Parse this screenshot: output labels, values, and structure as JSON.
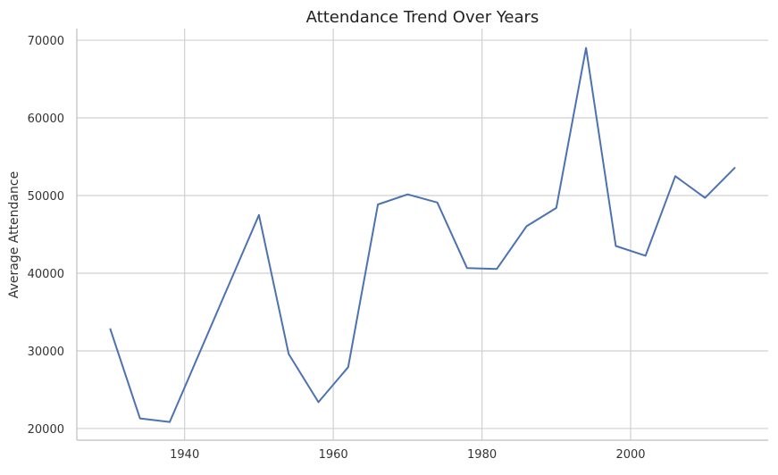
{
  "chart_data": {
    "type": "line",
    "title": "Attendance Trend Over Years",
    "xlabel": "",
    "ylabel": "Average Attendance",
    "xlim": [
      1925.5,
      2018.5
    ],
    "ylim": [
      18500,
      71500
    ],
    "xticks": [
      1940,
      1960,
      1980,
      2000
    ],
    "yticks": [
      20000,
      30000,
      40000,
      50000,
      60000,
      70000
    ],
    "grid": true,
    "series": [
      {
        "color": "#4c72b0",
        "x": [
          1930,
          1934,
          1938,
          1950,
          1954,
          1958,
          1962,
          1966,
          1970,
          1974,
          1978,
          1982,
          1986,
          1990,
          1994,
          1998,
          2002,
          2006,
          2010,
          2014
        ],
        "y": [
          32800,
          21300,
          20850,
          47500,
          29600,
          23400,
          27900,
          48850,
          50150,
          49100,
          40650,
          40550,
          46050,
          48400,
          69000,
          43500,
          42250,
          52500,
          49700,
          53550
        ]
      }
    ]
  }
}
